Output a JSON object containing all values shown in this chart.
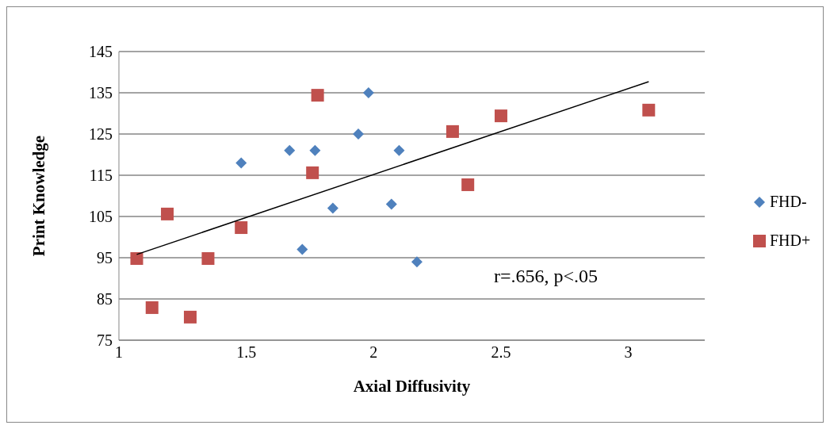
{
  "chart_data": {
    "type": "scatter",
    "xlabel": "Axial Diffusivity",
    "ylabel": "Print Knowledge",
    "xlim": [
      1,
      3.3
    ],
    "xticks": [
      1,
      1.5,
      2,
      2.5,
      3
    ],
    "ylim": [
      75,
      145
    ],
    "yticks": [
      75,
      85,
      95,
      105,
      115,
      125,
      135,
      145
    ],
    "grid": "y",
    "legend": "right",
    "annotations": [
      "r=.656, p<.05"
    ],
    "series": [
      {
        "name": "FHD-",
        "color": "#4f81bd",
        "marker": "diamond",
        "x": [
          1.48,
          1.67,
          1.77,
          1.94,
          1.98,
          2.1,
          1.84,
          2.07,
          1.72,
          2.17
        ],
        "values": [
          118,
          121,
          121,
          125,
          135,
          121,
          107,
          108,
          97,
          94
        ]
      },
      {
        "name": "FHD+",
        "color": "#c0504d",
        "marker": "square",
        "x": [
          1.07,
          1.13,
          1.19,
          1.28,
          1.35,
          1.48,
          1.76,
          1.78,
          2.31,
          2.37,
          2.5,
          3.08
        ],
        "values": [
          94.8,
          82.9,
          105.6,
          80.6,
          94.8,
          102.3,
          115.6,
          134.4,
          125.6,
          112.7,
          129.4,
          130.8
        ]
      },
      {
        "type": "line",
        "color": "#000000",
        "marker": "none",
        "x": [
          1.07,
          3.08
        ],
        "values": [
          95.8,
          137.7
        ]
      }
    ]
  }
}
